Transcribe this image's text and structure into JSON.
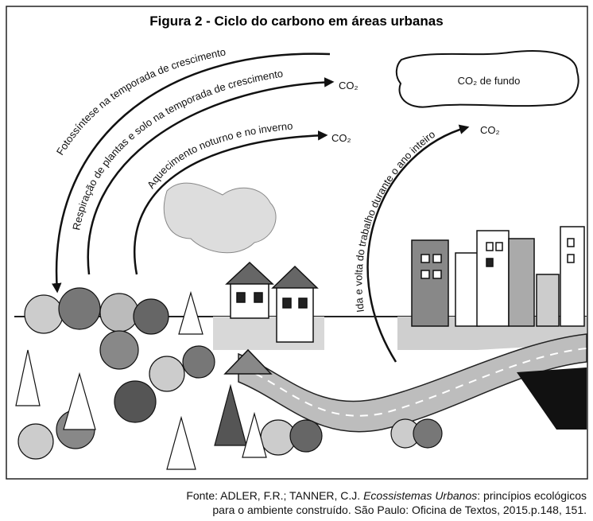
{
  "header": {
    "title": "Figura 2 - Ciclo do carbono em áreas urbanas"
  },
  "arrows": [
    {
      "label": "Fotossíntese na temporada de crescimento"
    },
    {
      "label": "Respiração de plantas e solo na temporada de crescimento",
      "end_label": "CO₂"
    },
    {
      "label": "Aquecimento noturno e no inverno",
      "end_label": "CO₂"
    },
    {
      "label": "Ida e volta do trabalho durante o ano inteiro",
      "end_label": "CO₂"
    }
  ],
  "cloud": {
    "label": "CO₂ de fundo"
  },
  "source": {
    "line1_before": "Fonte: ADLER, F.R.; TANNER, C.J. ",
    "line1_italic": "Ecossistemas Urbanos",
    "line1_after": ": princípios ecológicos",
    "line2": "para o ambiente construído. São Paulo: Oficina de Textos, 2015.p.148, 151."
  }
}
